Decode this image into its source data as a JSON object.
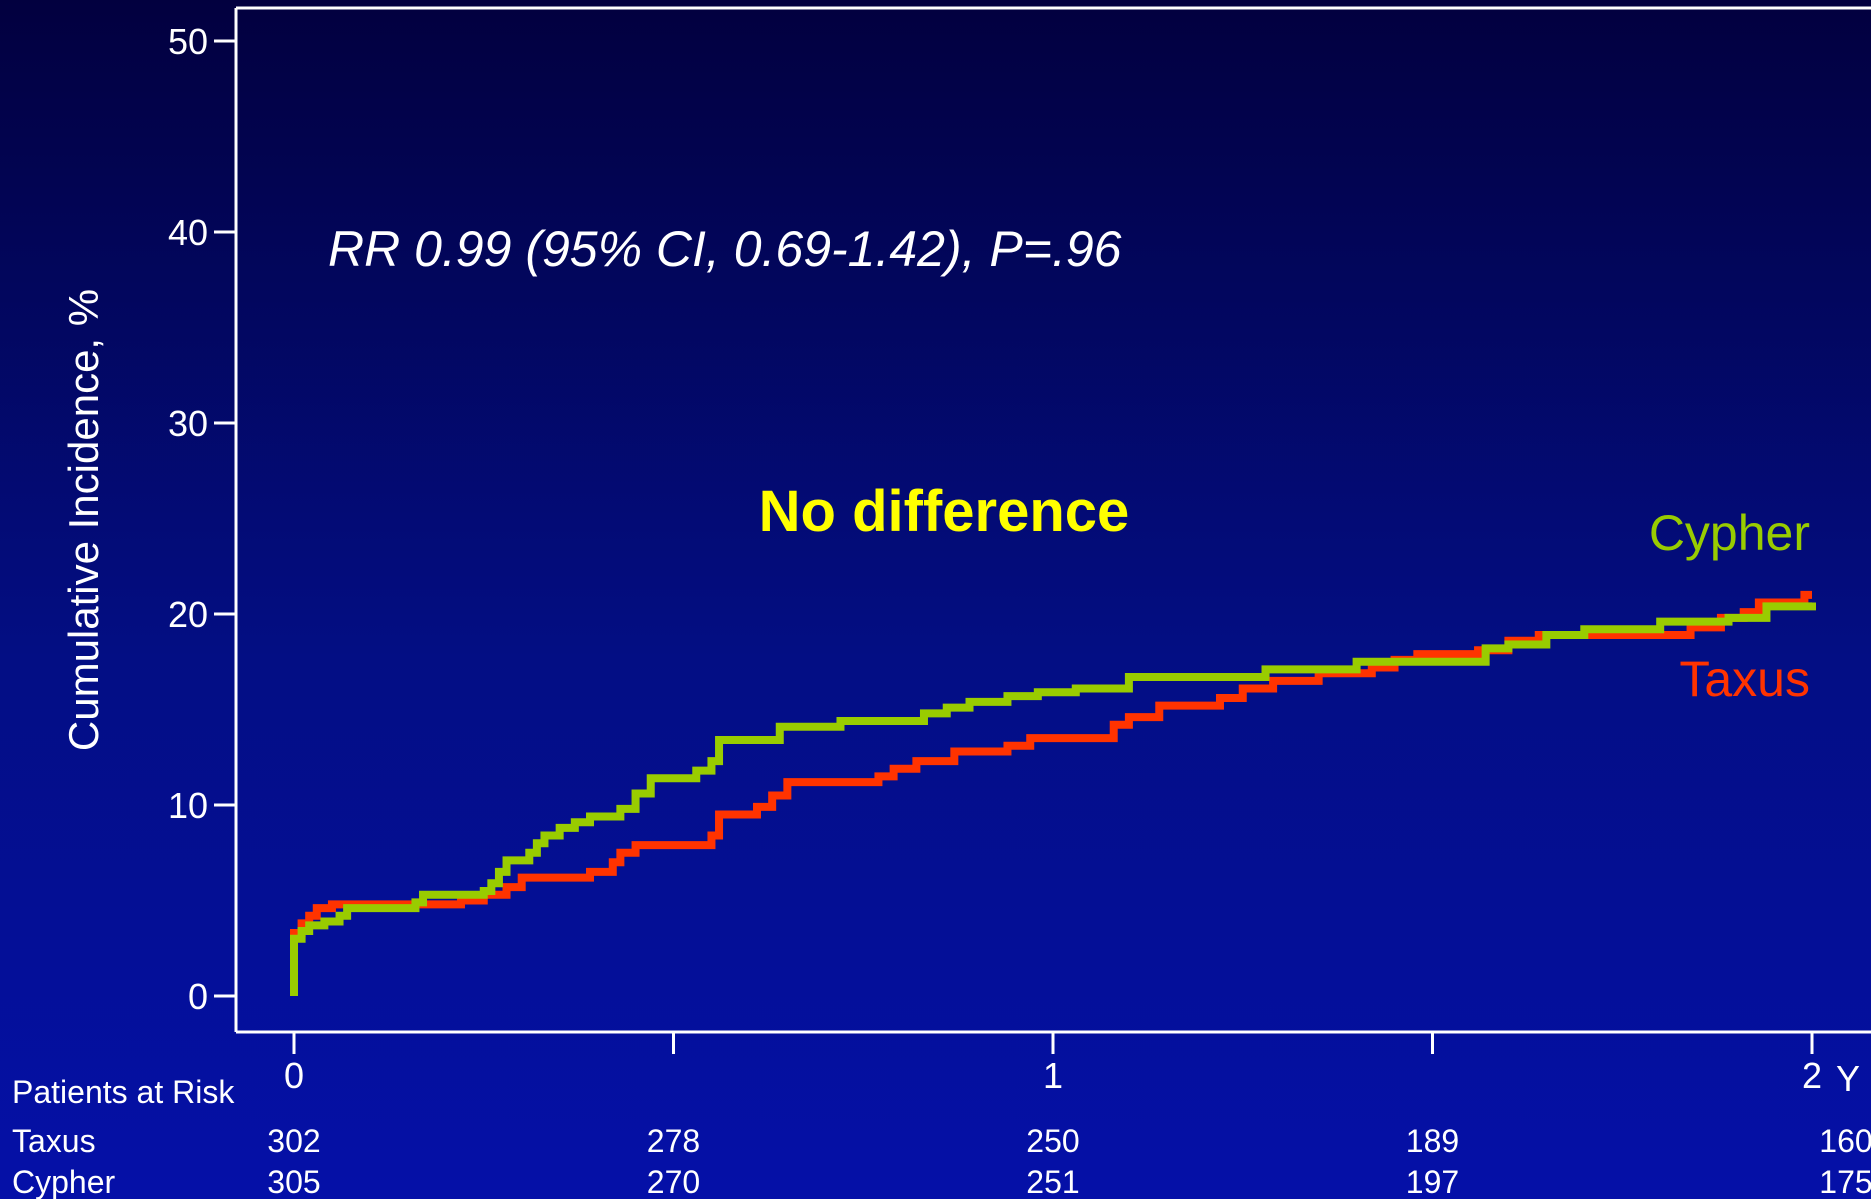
{
  "chart_data": {
    "type": "line",
    "ylabel": "Cumulative Incidence, %",
    "ylim": [
      0,
      50
    ],
    "yticks": [
      0,
      10,
      20,
      30,
      40,
      50
    ],
    "xlim": [
      0,
      2
    ],
    "xtick_labels": [
      {
        "value": 0,
        "label": "0"
      },
      {
        "value": 0.5,
        "label": ""
      },
      {
        "value": 1,
        "label": "1"
      },
      {
        "value": 1.5,
        "label": ""
      },
      {
        "value": 2,
        "label": "2"
      }
    ],
    "x_unit": "Y",
    "grid": false,
    "annotation": "RR 0.99 (95% CI, 0.69-1.42), P=.96",
    "headline": "No difference",
    "series": [
      {
        "name": "Cypher",
        "color": "#99cc00",
        "steps": [
          [
            0,
            0
          ],
          [
            0,
            3
          ],
          [
            0.01,
            3.4
          ],
          [
            0.02,
            3.7
          ],
          [
            0.04,
            3.9
          ],
          [
            0.06,
            4.2
          ],
          [
            0.07,
            4.6
          ],
          [
            0.15,
            4.6
          ],
          [
            0.16,
            4.9
          ],
          [
            0.17,
            5.3
          ],
          [
            0.25,
            5.5
          ],
          [
            0.26,
            5.9
          ],
          [
            0.27,
            6.5
          ],
          [
            0.28,
            7.1
          ],
          [
            0.31,
            7.5
          ],
          [
            0.32,
            8
          ],
          [
            0.33,
            8.4
          ],
          [
            0.35,
            8.8
          ],
          [
            0.37,
            9.1
          ],
          [
            0.39,
            9.4
          ],
          [
            0.43,
            9.8
          ],
          [
            0.45,
            10.6
          ],
          [
            0.47,
            11.4
          ],
          [
            0.53,
            11.8
          ],
          [
            0.55,
            12.3
          ],
          [
            0.56,
            13.4
          ],
          [
            0.64,
            14.1
          ],
          [
            0.72,
            14.4
          ],
          [
            0.83,
            14.8
          ],
          [
            0.86,
            15.1
          ],
          [
            0.89,
            15.4
          ],
          [
            0.94,
            15.7
          ],
          [
            0.98,
            15.9
          ],
          [
            1.03,
            16.1
          ],
          [
            1.1,
            16.7
          ],
          [
            1.28,
            17.1
          ],
          [
            1.4,
            17.5
          ],
          [
            1.53,
            17.5
          ],
          [
            1.57,
            18.2
          ],
          [
            1.6,
            18.4
          ],
          [
            1.65,
            18.9
          ],
          [
            1.7,
            19.2
          ],
          [
            1.8,
            19.6
          ],
          [
            1.89,
            19.8
          ],
          [
            1.94,
            20.4
          ],
          [
            2,
            20.6
          ]
        ]
      },
      {
        "name": "Taxus",
        "color": "#ff3300",
        "steps": [
          [
            0,
            0
          ],
          [
            0,
            3.3
          ],
          [
            0.01,
            3.8
          ],
          [
            0.02,
            4.2
          ],
          [
            0.03,
            4.6
          ],
          [
            0.05,
            4.8
          ],
          [
            0.18,
            4.8
          ],
          [
            0.22,
            5
          ],
          [
            0.25,
            5.3
          ],
          [
            0.28,
            5.7
          ],
          [
            0.3,
            6.2
          ],
          [
            0.39,
            6.5
          ],
          [
            0.42,
            7
          ],
          [
            0.43,
            7.5
          ],
          [
            0.45,
            7.9
          ],
          [
            0.55,
            8.4
          ],
          [
            0.56,
            9.5
          ],
          [
            0.61,
            9.9
          ],
          [
            0.63,
            10.5
          ],
          [
            0.65,
            11.2
          ],
          [
            0.77,
            11.5
          ],
          [
            0.79,
            11.9
          ],
          [
            0.82,
            12.3
          ],
          [
            0.87,
            12.8
          ],
          [
            0.94,
            13.1
          ],
          [
            0.97,
            13.5
          ],
          [
            1.08,
            14.2
          ],
          [
            1.1,
            14.6
          ],
          [
            1.14,
            15.2
          ],
          [
            1.22,
            15.6
          ],
          [
            1.25,
            16.1
          ],
          [
            1.29,
            16.5
          ],
          [
            1.35,
            16.9
          ],
          [
            1.42,
            17.2
          ],
          [
            1.45,
            17.6
          ],
          [
            1.48,
            17.9
          ],
          [
            1.56,
            18.1
          ],
          [
            1.6,
            18.6
          ],
          [
            1.64,
            18.9
          ],
          [
            1.84,
            19.3
          ],
          [
            1.88,
            19.8
          ],
          [
            1.91,
            20.1
          ],
          [
            1.93,
            20.6
          ],
          [
            1.99,
            21
          ],
          [
            2,
            21
          ]
        ]
      }
    ],
    "risk_table": {
      "title": "Patients at Risk",
      "rows": [
        {
          "name": "Taxus",
          "values": [
            302,
            278,
            250,
            189,
            160
          ]
        },
        {
          "name": "Cypher",
          "values": [
            305,
            270,
            251,
            197,
            175
          ]
        }
      ]
    }
  }
}
